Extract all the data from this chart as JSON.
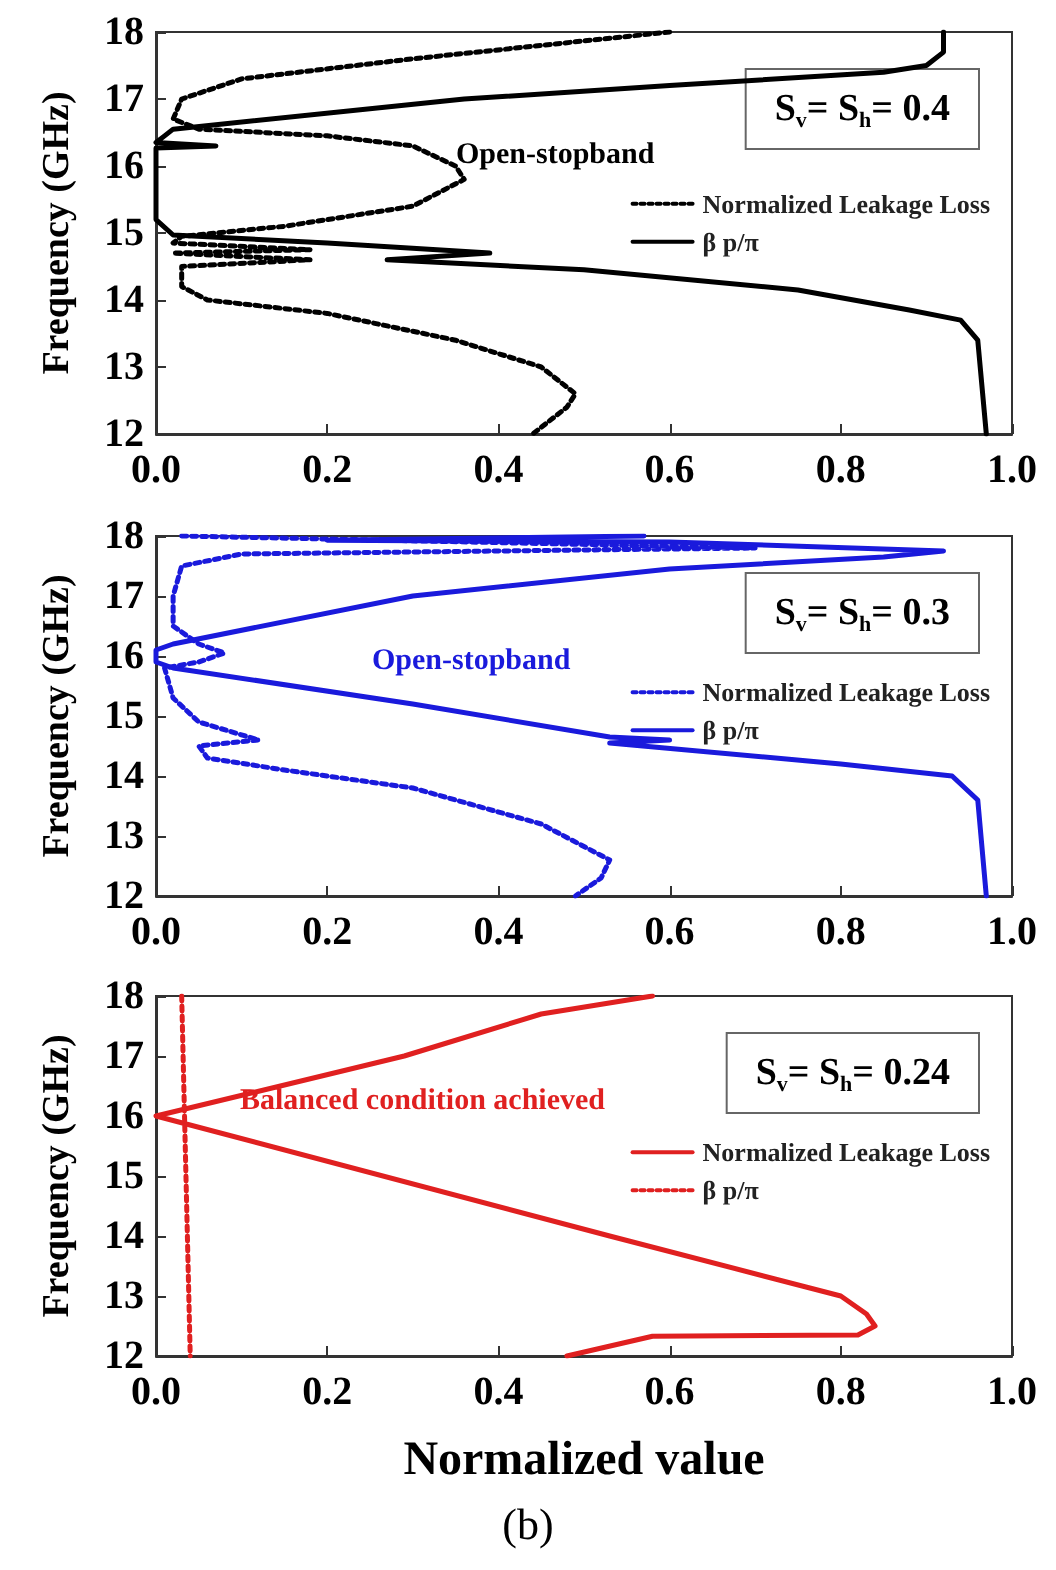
{
  "chart_data": [
    {
      "type": "line",
      "ylabel": "Frequency (GHz)",
      "xlim": [
        0,
        1
      ],
      "ylim": [
        12,
        18
      ],
      "xticks": [
        {
          "value": 0,
          "label": "0.0"
        },
        {
          "value": 0.2,
          "label": "0.2"
        },
        {
          "value": 0.4,
          "label": "0.4"
        },
        {
          "value": 0.6,
          "label": "0.6"
        },
        {
          "value": 0.8,
          "label": "0.8"
        },
        {
          "value": 1,
          "label": "1.0"
        }
      ],
      "yticks": [
        12,
        13,
        14,
        15,
        16,
        17,
        18
      ],
      "grid": false,
      "legend": "right",
      "marker": "none",
      "annotations": [
        "S$_{v}$= S$_{h}$= 0.4",
        "Open-stopband"
      ],
      "series": [
        {
          "name": "Normalized Leakage Loss",
          "color": "#000000",
          "line_style": "dotted",
          "x": [
            0.6,
            0.3,
            0.1,
            0.03,
            0.02,
            0.05,
            0.2,
            0.3,
            0.35,
            0.36,
            0.3,
            0.15,
            0.03,
            0.02,
            0.18,
            0.02,
            0.18,
            0.03,
            0.03,
            0.06,
            0.2,
            0.35,
            0.45,
            0.49,
            0.48,
            0.44
          ],
          "values": [
            18,
            17.6,
            17.3,
            17.0,
            16.7,
            16.55,
            16.45,
            16.3,
            16.0,
            15.8,
            15.4,
            15.1,
            14.95,
            14.85,
            14.75,
            14.7,
            14.6,
            14.5,
            14.2,
            14.0,
            13.8,
            13.4,
            13.0,
            12.6,
            12.4,
            12.0
          ]
        },
        {
          "name": "β p/π",
          "color": "#000000",
          "line_style": "solid",
          "x": [
            0.92,
            0.92,
            0.9,
            0.85,
            0.6,
            0.36,
            0.02,
            0.01,
            0.0,
            0.07,
            0.0,
            0.0,
            0.02,
            0.2,
            0.39,
            0.27,
            0.5,
            0.75,
            0.88,
            0.94,
            0.96,
            0.97
          ],
          "values": [
            18,
            17.7,
            17.5,
            17.4,
            17.2,
            17.0,
            16.55,
            16.45,
            16.35,
            16.3,
            16.27,
            15.2,
            14.97,
            14.85,
            14.7,
            14.6,
            14.45,
            14.15,
            13.85,
            13.7,
            13.4,
            12.0
          ]
        }
      ]
    },
    {
      "type": "line",
      "ylabel": "Frequency (GHz)",
      "xlim": [
        0,
        1
      ],
      "ylim": [
        12,
        18
      ],
      "xticks": [
        {
          "value": 0,
          "label": "0.0"
        },
        {
          "value": 0.2,
          "label": "0.2"
        },
        {
          "value": 0.4,
          "label": "0.4"
        },
        {
          "value": 0.6,
          "label": "0.6"
        },
        {
          "value": 0.8,
          "label": "0.8"
        },
        {
          "value": 1,
          "label": "1.0"
        }
      ],
      "yticks": [
        12,
        13,
        14,
        15,
        16,
        17,
        18
      ],
      "grid": false,
      "legend": "right",
      "marker": "none",
      "annotations": [
        "S$_{v}$= S$_{h}$= 0.3",
        "Open-stopband"
      ],
      "series": [
        {
          "name": "Normalized Leakage Loss",
          "color": "#1a1adc",
          "line_style": "dotted",
          "x": [
            0.03,
            0.2,
            0.7,
            0.1,
            0.03,
            0.02,
            0.02,
            0.05,
            0.08,
            0.05,
            0.01,
            0.02,
            0.05,
            0.12,
            0.05,
            0.06,
            0.15,
            0.3,
            0.45,
            0.53,
            0.52,
            0.49
          ],
          "values": [
            18,
            17.95,
            17.8,
            17.7,
            17.5,
            17.0,
            16.5,
            16.2,
            16.05,
            15.9,
            15.8,
            15.3,
            14.9,
            14.6,
            14.5,
            14.3,
            14.1,
            13.8,
            13.2,
            12.6,
            12.3,
            12.0
          ]
        },
        {
          "name": "β p/π",
          "color": "#1a1adc",
          "line_style": "solid",
          "x": [
            0.57,
            0.2,
            0.6,
            0.92,
            0.85,
            0.6,
            0.3,
            0.02,
            0.0,
            0.0,
            0.02,
            0.3,
            0.53,
            0.6,
            0.53,
            0.8,
            0.93,
            0.96,
            0.97
          ],
          "values": [
            18,
            17.93,
            17.9,
            17.75,
            17.65,
            17.45,
            17.0,
            16.2,
            16.1,
            15.9,
            15.8,
            15.2,
            14.65,
            14.6,
            14.55,
            14.2,
            14.0,
            13.6,
            12.0
          ]
        }
      ]
    },
    {
      "type": "line",
      "xlabel": "Normalized value",
      "ylabel": "Frequency (GHz)",
      "xlim": [
        0,
        1
      ],
      "ylim": [
        12,
        18
      ],
      "xticks": [
        {
          "value": 0,
          "label": "0.0"
        },
        {
          "value": 0.2,
          "label": "0.2"
        },
        {
          "value": 0.4,
          "label": "0.4"
        },
        {
          "value": 0.6,
          "label": "0.6"
        },
        {
          "value": 0.8,
          "label": "0.8"
        },
        {
          "value": 1,
          "label": "1.0"
        }
      ],
      "yticks": [
        12,
        13,
        14,
        15,
        16,
        17,
        18
      ],
      "grid": false,
      "legend": "right",
      "marker": "none",
      "annotations": [
        "S$_{v}$= S$_{h}$= 0.24",
        "Balanced condition achieved",
        "(b)"
      ],
      "series": [
        {
          "name": "Normalized Leakage Loss",
          "color": "#e02020",
          "line_style": "solid",
          "x": [
            0.58,
            0.45,
            0.29,
            0.0,
            0.53,
            0.8,
            0.83,
            0.84,
            0.82,
            0.58,
            0.48
          ],
          "values": [
            18,
            17.7,
            17.0,
            16.0,
            14.0,
            13.0,
            12.7,
            12.5,
            12.35,
            12.33,
            12.0
          ]
        },
        {
          "name": "β p/π",
          "color": "#e02020",
          "line_style": "dotted",
          "x": [
            0.03,
            0.04
          ],
          "values": [
            18,
            12
          ]
        }
      ]
    }
  ]
}
